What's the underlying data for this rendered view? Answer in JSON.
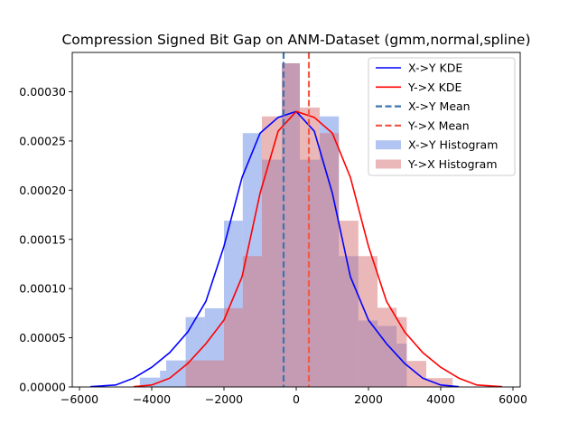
{
  "chart_data": {
    "type": "bar",
    "title": "Compression Signed Bit Gap on ANM-Dataset (gmm,normal,spline)",
    "xlabel": "",
    "ylabel": "",
    "xlim": [
      -6200,
      6200
    ],
    "ylim": [
      0,
      0.00034
    ],
    "xticks": [
      -6000,
      -4000,
      -2000,
      0,
      2000,
      4000,
      6000
    ],
    "xtick_labels": [
      "−6000",
      "−4000",
      "−2000",
      "0",
      "2000",
      "4000",
      "6000"
    ],
    "yticks": [
      0,
      5e-05,
      0.0001,
      0.00015,
      0.0002,
      0.00025,
      0.0003
    ],
    "ytick_labels": [
      "0.00000",
      "0.00005",
      "0.00010",
      "0.00015",
      "0.00020",
      "0.00025",
      "0.00030"
    ],
    "legend_position": "top-right",
    "grid": false,
    "series": [
      {
        "name": "X->Y Histogram",
        "kind": "histogram",
        "color": "#6689e6",
        "alpha": 0.5,
        "bins": [
          {
            "x0": -4330,
            "x1": -3770,
            "value": 9.5e-06
          },
          {
            "x0": -3770,
            "x1": -3600,
            "value": 1.65e-05
          },
          {
            "x0": -3600,
            "x1": -3060,
            "value": 2.7e-05
          },
          {
            "x0": -3060,
            "x1": -2530,
            "value": 7.1e-05
          },
          {
            "x0": -2530,
            "x1": -2000,
            "value": 8e-05
          },
          {
            "x0": -2000,
            "x1": -1480,
            "value": 0.000169
          },
          {
            "x0": -1480,
            "x1": -950,
            "value": 0.000258
          },
          {
            "x0": -950,
            "x1": -400,
            "value": 0.000231
          },
          {
            "x0": -400,
            "x1": 100,
            "value": 0.000329
          },
          {
            "x0": 100,
            "x1": 650,
            "value": 0.000231
          },
          {
            "x0": 650,
            "x1": 1180,
            "value": 0.000275
          },
          {
            "x0": 1180,
            "x1": 1720,
            "value": 0.000133
          },
          {
            "x0": 1720,
            "x1": 2250,
            "value": 6.75e-05
          },
          {
            "x0": 2250,
            "x1": 2780,
            "value": 6.2e-05
          },
          {
            "x0": 2780,
            "x1": 3060,
            "value": 4.4e-05
          }
        ]
      },
      {
        "name": "Y->X Histogram",
        "kind": "histogram",
        "color": "#d67272",
        "alpha": 0.5,
        "bins": [
          {
            "x0": -3060,
            "x1": -2000,
            "value": 2.7e-05
          },
          {
            "x0": -2000,
            "x1": -1480,
            "value": 8e-05
          },
          {
            "x0": -1480,
            "x1": -950,
            "value": 0.000133
          },
          {
            "x0": -950,
            "x1": -400,
            "value": 0.000275
          },
          {
            "x0": -400,
            "x1": 100,
            "value": 0.000329
          },
          {
            "x0": 100,
            "x1": 650,
            "value": 0.000284
          },
          {
            "x0": 650,
            "x1": 1180,
            "value": 0.000258
          },
          {
            "x0": 1180,
            "x1": 1720,
            "value": 0.000169
          },
          {
            "x0": 1720,
            "x1": 2250,
            "value": 0.000133
          },
          {
            "x0": 2250,
            "x1": 2780,
            "value": 8.05e-05
          },
          {
            "x0": 2780,
            "x1": 3060,
            "value": 7.1e-05
          },
          {
            "x0": 3060,
            "x1": 3600,
            "value": 2.65e-05
          },
          {
            "x0": 3600,
            "x1": 4330,
            "value": 9e-06
          }
        ]
      },
      {
        "name": "X->Y KDE",
        "kind": "line",
        "color": "#0000ff",
        "x": [
          -5700,
          -5000,
          -4500,
          -4000,
          -3500,
          -3000,
          -2500,
          -2000,
          -1500,
          -1000,
          -500,
          0,
          500,
          1000,
          1500,
          2000,
          2500,
          3000,
          3500,
          4000,
          4500
        ],
        "y": [
          3e-07,
          2e-06,
          9e-06,
          2e-05,
          3.5e-05,
          5.6e-05,
          8.7e-05,
          0.000143,
          0.000213,
          0.000258,
          0.000274,
          0.00028,
          0.00026,
          0.000197,
          0.000112,
          6.8e-05,
          4.4e-05,
          2.4e-05,
          9e-06,
          2e-06,
          3e-07
        ]
      },
      {
        "name": "Y->X KDE",
        "kind": "line",
        "color": "#ff0000",
        "x": [
          -4500,
          -4000,
          -3500,
          -3000,
          -2500,
          -2000,
          -1500,
          -1000,
          -500,
          0,
          500,
          1000,
          1500,
          2000,
          2500,
          3000,
          3500,
          4000,
          4500,
          5000,
          5700
        ],
        "y": [
          3e-07,
          2e-06,
          9e-06,
          2.4e-05,
          4.4e-05,
          6.8e-05,
          0.000112,
          0.000197,
          0.00026,
          0.00028,
          0.000274,
          0.000258,
          0.000213,
          0.000143,
          8.7e-05,
          5.6e-05,
          3.5e-05,
          2e-05,
          9e-06,
          2e-06,
          3e-07
        ]
      },
      {
        "name": "X->Y Mean",
        "kind": "vline",
        "color": "#3a75b0",
        "dash": true,
        "x": -350
      },
      {
        "name": "Y->X Mean",
        "kind": "vline",
        "color": "#f05a46",
        "dash": true,
        "x": 350
      }
    ],
    "legend_order": [
      "X->Y KDE",
      "Y->X KDE",
      "X->Y Mean",
      "Y->X Mean",
      "X->Y Histogram",
      "Y->X Histogram"
    ]
  }
}
